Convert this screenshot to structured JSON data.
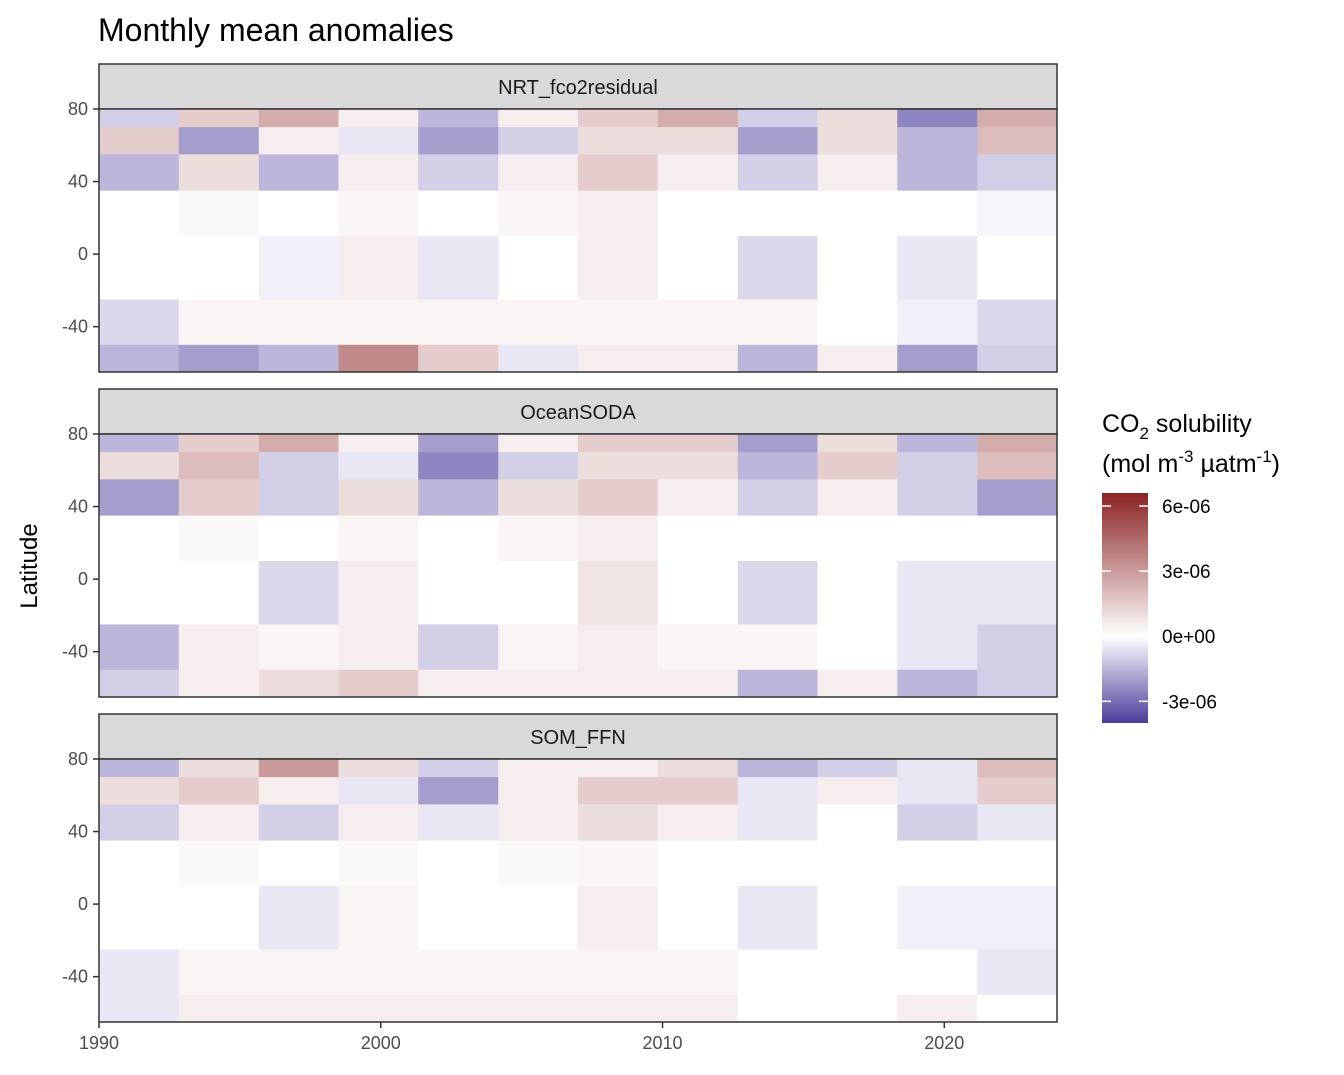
{
  "chart_data": {
    "type": "heatmap",
    "title": "Monthly mean anomalies",
    "xlabel": "",
    "ylabel": "Latitude",
    "xlim": [
      1990,
      2024
    ],
    "ylim": [
      -65,
      80
    ],
    "x_ticks": [
      "1990",
      "2000",
      "2010",
      "2020"
    ],
    "y_ticks": [
      "80",
      "40",
      "0",
      "-40"
    ],
    "panels": [
      {
        "name": "NRT_fco2residual",
        "values": [
          [
            -1e-06,
            1.5e-06,
            2.5e-06,
            5e-07,
            -1.5e-06,
            5e-07,
            1.5e-06,
            2.5e-06,
            -1e-06,
            1e-06,
            -2.5e-06,
            2.5e-06
          ],
          [
            1.5e-06,
            -2e-06,
            5e-07,
            -5e-07,
            -2e-06,
            -1e-06,
            1e-06,
            1e-06,
            -2e-06,
            1e-06,
            -1.5e-06,
            2e-06
          ],
          [
            -1.5e-06,
            1e-06,
            -1.5e-06,
            5e-07,
            -1e-06,
            5e-07,
            1.5e-06,
            5e-07,
            -1e-06,
            5e-07,
            -1.5e-06,
            -1e-06
          ],
          [
            0.0,
            2e-07,
            0.0,
            3e-07,
            0.0,
            3e-07,
            5e-07,
            0.0,
            0.0,
            0.0,
            0.0,
            -2e-07
          ],
          [
            0.0,
            0.0,
            -3e-07,
            5e-07,
            -5e-07,
            0.0,
            5e-07,
            0.0,
            -8e-07,
            0.0,
            -5e-07,
            0.0
          ],
          [
            -8e-07,
            3e-07,
            3e-07,
            3e-07,
            3e-07,
            3e-07,
            3e-07,
            3e-07,
            3e-07,
            0.0,
            -3e-07,
            -8e-07
          ],
          [
            -1.5e-06,
            -2e-06,
            -1.5e-06,
            3.5e-06,
            1.5e-06,
            -5e-07,
            5e-07,
            5e-07,
            -1.5e-06,
            5e-07,
            -2e-06,
            -1e-06
          ]
        ]
      },
      {
        "name": "OceanSODA",
        "values": [
          [
            -1.5e-06,
            1.5e-06,
            2.5e-06,
            5e-07,
            -2e-06,
            5e-07,
            1.5e-06,
            1.5e-06,
            -2e-06,
            1e-06,
            -1.5e-06,
            2.5e-06
          ],
          [
            1e-06,
            2e-06,
            -1e-06,
            -5e-07,
            -2.5e-06,
            -1e-06,
            1e-06,
            1e-06,
            -1.5e-06,
            1.5e-06,
            -1e-06,
            2e-06
          ],
          [
            -2e-06,
            1.5e-06,
            -1e-06,
            1e-06,
            -1.5e-06,
            1e-06,
            1.5e-06,
            5e-07,
            -1e-06,
            5e-07,
            -1e-06,
            -2e-06
          ],
          [
            0.0,
            2e-07,
            0.0,
            3e-07,
            0.0,
            3e-07,
            5e-07,
            0.0,
            0.0,
            0.0,
            0.0,
            0.0
          ],
          [
            0.0,
            0.0,
            -8e-07,
            5e-07,
            0.0,
            0.0,
            8e-07,
            0.0,
            -8e-07,
            0.0,
            -5e-07,
            -5e-07
          ],
          [
            -1.5e-06,
            5e-07,
            3e-07,
            5e-07,
            -1e-06,
            3e-07,
            5e-07,
            3e-07,
            3e-07,
            0.0,
            -5e-07,
            -1e-06
          ],
          [
            -1e-06,
            5e-07,
            1e-06,
            1.5e-06,
            5e-07,
            5e-07,
            5e-07,
            5e-07,
            -1.5e-06,
            5e-07,
            -1.5e-06,
            -1e-06
          ]
        ]
      },
      {
        "name": "SOM_FFN",
        "values": [
          [
            -1.5e-06,
            1e-06,
            3e-06,
            1e-06,
            -1e-06,
            5e-07,
            5e-07,
            1e-06,
            -1.5e-06,
            -1e-06,
            -5e-07,
            2e-06
          ],
          [
            1e-06,
            1.5e-06,
            5e-07,
            -5e-07,
            -2e-06,
            5e-07,
            1.5e-06,
            1.5e-06,
            -5e-07,
            5e-07,
            -5e-07,
            1.5e-06
          ],
          [
            -1e-06,
            5e-07,
            -1e-06,
            5e-07,
            -5e-07,
            5e-07,
            1e-06,
            5e-07,
            -5e-07,
            0.0,
            -1e-06,
            -5e-07
          ],
          [
            0.0,
            2e-07,
            0.0,
            2e-07,
            0.0,
            2e-07,
            3e-07,
            0.0,
            0.0,
            0.0,
            0.0,
            0.0
          ],
          [
            0.0,
            0.0,
            -5e-07,
            3e-07,
            0.0,
            0.0,
            5e-07,
            0.0,
            -5e-07,
            0.0,
            -3e-07,
            -3e-07
          ],
          [
            -5e-07,
            3e-07,
            3e-07,
            3e-07,
            3e-07,
            3e-07,
            3e-07,
            3e-07,
            0.0,
            0.0,
            0.0,
            -5e-07
          ],
          [
            -5e-07,
            5e-07,
            5e-07,
            5e-07,
            5e-07,
            5e-07,
            5e-07,
            5e-07,
            0.0,
            0.0,
            5e-07,
            0.0
          ]
        ]
      }
    ],
    "cell_years": [
      1990,
      1992.83,
      1995.67,
      1998.5,
      2001.33,
      2004.17,
      2007,
      2009.83,
      2012.67,
      2015.5,
      2018.33,
      2021.17,
      2024
    ],
    "cell_lats": [
      80,
      70,
      55,
      35,
      10,
      -25,
      -50,
      -65
    ],
    "legend": {
      "title_main": "CO",
      "title_sub": "2",
      "title_rest": " solubility",
      "unit_open": "(mol m",
      "unit_sup1": "-3",
      "unit_mid": " µatm",
      "unit_sup2": "-1",
      "unit_close": ")",
      "min": -4e-06,
      "max": 6.6e-06,
      "ticks": [
        {
          "label": "6e-06",
          "value": 6e-06
        },
        {
          "label": "3e-06",
          "value": 3e-06
        },
        {
          "label": "0e+00",
          "value": 0.0
        },
        {
          "label": "-3e-06",
          "value": -3e-06
        }
      ],
      "colors": {
        "low": "#4a3d9b",
        "mid": "#ffffff",
        "high": "#8b2323"
      }
    },
    "grid": false,
    "legend_position": "right"
  }
}
